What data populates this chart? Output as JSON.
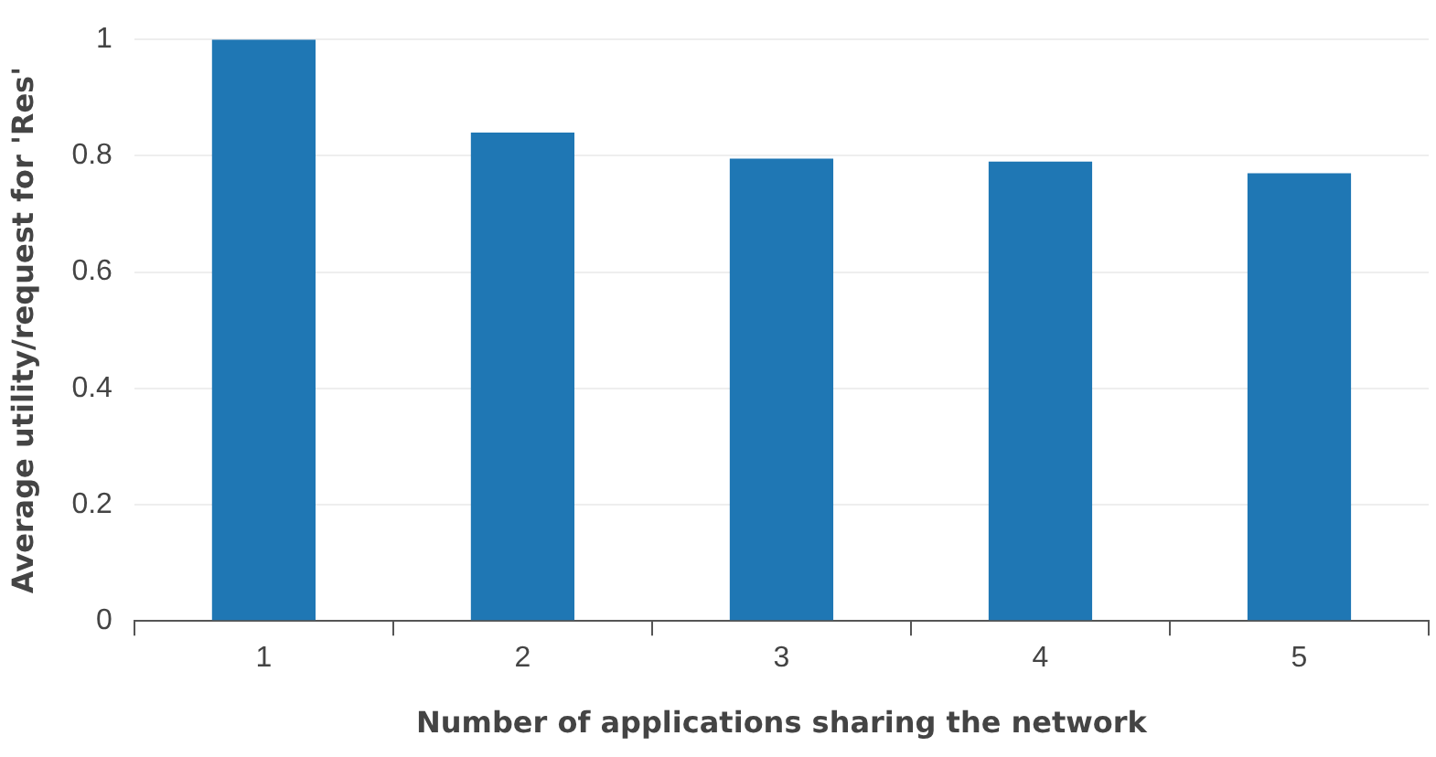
{
  "chart_data": {
    "type": "bar",
    "xlabel": "Number of applications sharing the network",
    "ylabel": "Average utility/request for 'Res'",
    "categories": [
      "1",
      "2",
      "3",
      "4",
      "5"
    ],
    "values": [
      1.0,
      0.84,
      0.795,
      0.79,
      0.77
    ],
    "color": "#1f77b4",
    "ylim": [
      0,
      1
    ],
    "yticks": [
      0,
      0.2,
      0.4,
      0.6,
      0.8,
      1
    ],
    "grid": "y"
  }
}
